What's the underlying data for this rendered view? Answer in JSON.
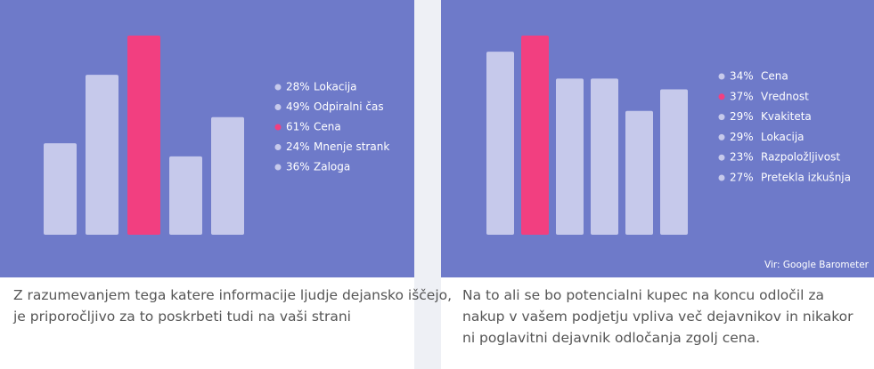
{
  "chart_data": [
    {
      "type": "bar",
      "categories": [
        "Lokacija",
        "Odpiralni čas",
        "Cena",
        "Mnenje strank",
        "Zaloga"
      ],
      "values": [
        28,
        49,
        61,
        24,
        36
      ],
      "value_labels": [
        "28%",
        "49%",
        "61%",
        "24%",
        "36%"
      ],
      "colors": [
        "#c6c9eb",
        "#c6c9eb",
        "#f23f80",
        "#c6c9eb",
        "#c6c9eb"
      ],
      "caption": "Z razumevanjem tega katere informacije ljudje dejansko iščejo, je priporočljivo za to poskrbeti tudi na vaši strani"
    },
    {
      "type": "bar",
      "categories": [
        "Cena",
        "Vrednost",
        "Kvakiteta",
        "Lokacija",
        "Razpoložljivost",
        "Pretekla izkušnja"
      ],
      "values": [
        34,
        37,
        29,
        29,
        23,
        27
      ],
      "value_labels": [
        "34%",
        "37%",
        "29%",
        "29%",
        "23%",
        "27%"
      ],
      "colors": [
        "#c6c9eb",
        "#f23f80",
        "#c6c9eb",
        "#c6c9eb",
        "#c6c9eb",
        "#c6c9eb"
      ],
      "caption": "Na to ali se bo potencialni kupec na koncu odločil za nakup v vašem podjetju vpliva več dejavnikov in nikakor ni poglavitni dejavnik odločanja zgolj cena.",
      "source": "Vir: Google Barometer"
    }
  ]
}
